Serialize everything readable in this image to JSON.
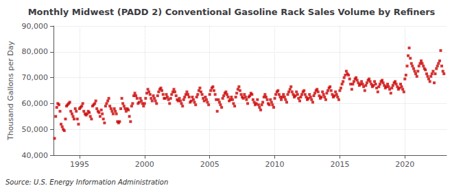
{
  "chart_data": {
    "type": "scatter",
    "title": "Monthly Midwest (PADD 2) Conventional Gasoline Rack Sales Volume by Refiners",
    "ylabel": "Thousand Gallons per Day",
    "source": "Source: U.S. Energy Information Administration",
    "color": "#cc0000",
    "marker": "square",
    "grid": true,
    "xlim": [
      1993.0,
      2023.2
    ],
    "xticks": [
      1995,
      2000,
      2005,
      2010,
      2015,
      2020
    ],
    "ylim": [
      40000,
      90000
    ],
    "yticks": [
      {
        "value": 40000,
        "label": "40,000"
      },
      {
        "value": 50000,
        "label": "50,000"
      },
      {
        "value": 60000,
        "label": "60,000"
      },
      {
        "value": 70000,
        "label": "70,000"
      },
      {
        "value": 80000,
        "label": "80,000"
      },
      {
        "value": 90000,
        "label": "90,000"
      }
    ],
    "x": [
      1993.08,
      1993.17,
      1993.25,
      1993.33,
      1993.42,
      1993.5,
      1993.58,
      1993.67,
      1993.75,
      1993.83,
      1993.92,
      1994.0,
      1994.08,
      1994.17,
      1994.25,
      1994.33,
      1994.42,
      1994.5,
      1994.58,
      1994.67,
      1994.75,
      1994.83,
      1994.92,
      1995.0,
      1995.08,
      1995.17,
      1995.25,
      1995.33,
      1995.42,
      1995.5,
      1995.58,
      1995.67,
      1995.75,
      1995.83,
      1995.92,
      1996.0,
      1996.08,
      1996.17,
      1996.25,
      1996.33,
      1996.42,
      1996.5,
      1996.58,
      1996.67,
      1996.75,
      1996.83,
      1996.92,
      1997.0,
      1997.08,
      1997.17,
      1997.25,
      1997.33,
      1997.42,
      1997.5,
      1997.58,
      1997.67,
      1997.75,
      1997.83,
      1997.92,
      1998.0,
      1998.08,
      1998.17,
      1998.25,
      1998.33,
      1998.42,
      1998.5,
      1998.58,
      1998.67,
      1998.75,
      1998.83,
      1998.92,
      1999.0,
      1999.08,
      1999.17,
      1999.25,
      1999.33,
      1999.42,
      1999.5,
      1999.58,
      1999.67,
      1999.75,
      1999.83,
      1999.92,
      2000.0,
      2000.08,
      2000.17,
      2000.25,
      2000.33,
      2000.42,
      2000.5,
      2000.58,
      2000.67,
      2000.75,
      2000.83,
      2000.92,
      2001.0,
      2001.08,
      2001.17,
      2001.25,
      2001.33,
      2001.42,
      2001.5,
      2001.58,
      2001.67,
      2001.75,
      2001.83,
      2001.92,
      2002.0,
      2002.08,
      2002.17,
      2002.25,
      2002.33,
      2002.42,
      2002.5,
      2002.58,
      2002.67,
      2002.75,
      2002.83,
      2002.92,
      2003.0,
      2003.08,
      2003.17,
      2003.25,
      2003.33,
      2003.42,
      2003.5,
      2003.58,
      2003.67,
      2003.75,
      2003.83,
      2003.92,
      2004.0,
      2004.08,
      2004.17,
      2004.25,
      2004.33,
      2004.42,
      2004.5,
      2004.58,
      2004.67,
      2004.75,
      2004.83,
      2004.92,
      2005.0,
      2005.08,
      2005.17,
      2005.25,
      2005.33,
      2005.42,
      2005.5,
      2005.58,
      2005.67,
      2005.75,
      2005.83,
      2005.92,
      2006.0,
      2006.08,
      2006.17,
      2006.25,
      2006.33,
      2006.42,
      2006.5,
      2006.58,
      2006.67,
      2006.75,
      2006.83,
      2006.92,
      2007.0,
      2007.08,
      2007.17,
      2007.25,
      2007.33,
      2007.42,
      2007.5,
      2007.58,
      2007.67,
      2007.75,
      2007.83,
      2007.92,
      2008.0,
      2008.08,
      2008.17,
      2008.25,
      2008.33,
      2008.42,
      2008.5,
      2008.58,
      2008.67,
      2008.75,
      2008.83,
      2008.92,
      2009.0,
      2009.08,
      2009.17,
      2009.25,
      2009.33,
      2009.42,
      2009.5,
      2009.58,
      2009.67,
      2009.75,
      2009.83,
      2009.92,
      2010.0,
      2010.08,
      2010.17,
      2010.25,
      2010.33,
      2010.42,
      2010.5,
      2010.58,
      2010.67,
      2010.75,
      2010.83,
      2010.92,
      2011.0,
      2011.08,
      2011.17,
      2011.25,
      2011.33,
      2011.42,
      2011.5,
      2011.58,
      2011.67,
      2011.75,
      2011.83,
      2011.92,
      2012.0,
      2012.08,
      2012.17,
      2012.25,
      2012.33,
      2012.42,
      2012.5,
      2012.58,
      2012.67,
      2012.75,
      2012.83,
      2012.92,
      2013.0,
      2013.08,
      2013.17,
      2013.25,
      2013.33,
      2013.42,
      2013.5,
      2013.58,
      2013.67,
      2013.75,
      2013.83,
      2013.92,
      2014.0,
      2014.08,
      2014.17,
      2014.25,
      2014.33,
      2014.42,
      2014.5,
      2014.58,
      2014.67,
      2014.75,
      2014.83,
      2014.92,
      2015.0,
      2015.08,
      2015.17,
      2015.25,
      2015.33,
      2015.42,
      2015.5,
      2015.58,
      2015.67,
      2015.75,
      2015.83,
      2015.92,
      2016.0,
      2016.08,
      2016.17,
      2016.25,
      2016.33,
      2016.42,
      2016.5,
      2016.58,
      2016.67,
      2016.75,
      2016.83,
      2016.92,
      2017.0,
      2017.08,
      2017.17,
      2017.25,
      2017.33,
      2017.42,
      2017.5,
      2017.58,
      2017.67,
      2017.75,
      2017.83,
      2017.92,
      2018.0,
      2018.08,
      2018.17,
      2018.25,
      2018.33,
      2018.42,
      2018.5,
      2018.58,
      2018.67,
      2018.75,
      2018.83,
      2018.92,
      2019.0,
      2019.08,
      2019.17,
      2019.25,
      2019.33,
      2019.42,
      2019.5,
      2019.58,
      2019.67,
      2019.75,
      2019.83,
      2019.92,
      2020.0,
      2020.08,
      2020.17,
      2020.25,
      2020.33,
      2020.42,
      2020.5,
      2020.58,
      2020.67,
      2020.75,
      2020.83,
      2020.92,
      2021.0,
      2021.08,
      2021.17,
      2021.25,
      2021.33,
      2021.42,
      2021.5,
      2021.58,
      2021.67,
      2021.75,
      2021.83,
      2021.92,
      2022.0,
      2022.08,
      2022.17,
      2022.25,
      2022.33,
      2022.42,
      2022.5,
      2022.58,
      2022.67,
      2022.75,
      2022.83,
      2022.92,
      2023.0
    ],
    "values": [
      46500,
      55000,
      58500,
      60000,
      59500,
      57000,
      52000,
      51000,
      50000,
      49500,
      54000,
      59000,
      59500,
      60000,
      60500,
      57000,
      56000,
      55000,
      54000,
      58000,
      57000,
      54000,
      52000,
      58000,
      58500,
      59000,
      60000,
      57000,
      56000,
      55500,
      56000,
      57000,
      56500,
      55000,
      54000,
      59000,
      59500,
      60000,
      61000,
      58000,
      57000,
      56500,
      55000,
      57500,
      56000,
      54000,
      52500,
      59000,
      60000,
      61000,
      62000,
      59000,
      58000,
      57000,
      56000,
      58000,
      57000,
      56000,
      53000,
      52500,
      53000,
      58000,
      62000,
      60000,
      59000,
      58000,
      57000,
      58000,
      57500,
      55000,
      53000,
      59000,
      60000,
      63000,
      64000,
      63000,
      62000,
      60000,
      60500,
      62000,
      61000,
      60000,
      59000,
      60000,
      62000,
      64000,
      65500,
      64500,
      63500,
      62000,
      61000,
      63000,
      62000,
      61000,
      60000,
      63000,
      64500,
      65500,
      66000,
      65000,
      63500,
      62000,
      62000,
      63500,
      62500,
      61500,
      60000,
      62000,
      63500,
      64500,
      65500,
      64500,
      63000,
      61500,
      61000,
      62000,
      61000,
      60000,
      59000,
      61500,
      62500,
      63500,
      64500,
      63500,
      62500,
      60500,
      61000,
      62500,
      61500,
      60500,
      59500,
      62500,
      63500,
      65000,
      66000,
      64500,
      63500,
      62000,
      61000,
      62500,
      61500,
      60500,
      59500,
      63500,
      65000,
      66000,
      66500,
      65000,
      63500,
      61500,
      57000,
      61500,
      60500,
      59500,
      58500,
      62000,
      63000,
      64000,
      64500,
      63500,
      62500,
      61000,
      61500,
      62500,
      61500,
      60000,
      59000,
      62500,
      64000,
      65500,
      66500,
      65000,
      63500,
      62500,
      62000,
      63500,
      62500,
      61500,
      60000,
      62500,
      63000,
      64000,
      63500,
      61500,
      60500,
      59500,
      60000,
      61500,
      59500,
      58500,
      57500,
      59500,
      60500,
      62500,
      63500,
      62500,
      61500,
      60000,
      59500,
      61500,
      60500,
      59500,
      58500,
      62000,
      63500,
      64500,
      65000,
      63500,
      62500,
      61500,
      62500,
      63500,
      62500,
      61500,
      60500,
      63500,
      64500,
      65500,
      66500,
      64500,
      63500,
      62500,
      63000,
      64500,
      63500,
      62000,
      61000,
      62500,
      63500,
      64500,
      65000,
      63500,
      62500,
      61500,
      62000,
      63500,
      62500,
      61500,
      60500,
      63000,
      64000,
      65000,
      65500,
      64500,
      63000,
      62000,
      62500,
      64500,
      63500,
      62500,
      61500,
      64000,
      65000,
      66000,
      66500,
      65000,
      63500,
      62500,
      63000,
      64500,
      63500,
      62500,
      61500,
      65000,
      66000,
      67500,
      68500,
      70000,
      71000,
      72500,
      71500,
      71000,
      69500,
      67500,
      65500,
      67500,
      68500,
      69500,
      70000,
      69000,
      68000,
      67000,
      67500,
      68500,
      67500,
      66500,
      65000,
      67000,
      68000,
      69000,
      69500,
      68500,
      67500,
      66500,
      67000,
      68500,
      67500,
      66000,
      64500,
      66500,
      67500,
      68500,
      69000,
      68000,
      67000,
      66000,
      66500,
      67500,
      66500,
      65500,
      64000,
      66000,
      67000,
      68000,
      68500,
      67500,
      66500,
      65500,
      66000,
      67500,
      66500,
      65500,
      64500,
      69500,
      71000,
      74500,
      78500,
      81500,
      77500,
      75500,
      74500,
      73500,
      72500,
      71500,
      70500,
      72500,
      74500,
      75500,
      76500,
      75500,
      74500,
      73500,
      73000,
      71500,
      70500,
      69500,
      68500,
      70500,
      71500,
      72500,
      68000,
      71500,
      73500,
      74500,
      75500,
      76500,
      80500,
      74500,
      72500,
      71500
    ]
  }
}
